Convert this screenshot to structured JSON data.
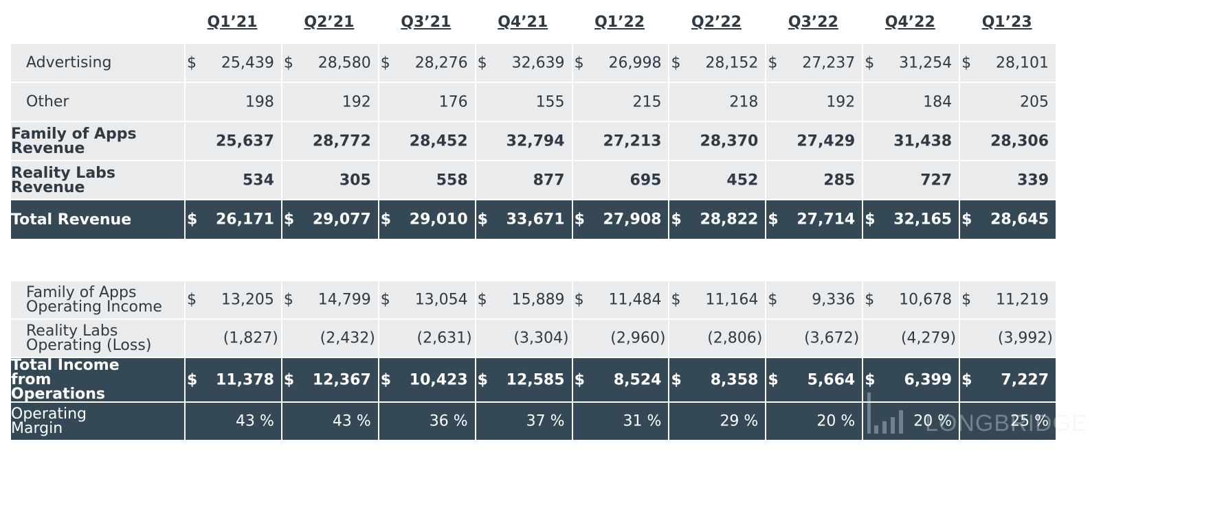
{
  "quarters": [
    "Q1’21",
    "Q2’21",
    "Q3’21",
    "Q4’21",
    "Q1’22",
    "Q2’22",
    "Q3’22",
    "Q4’22",
    "Q1’23"
  ],
  "revenue_rows": [
    {
      "label": "Advertising",
      "bold": false,
      "indent": true,
      "style": "light",
      "dollar": true,
      "values": [
        "25,439",
        "28,580",
        "28,276",
        "32,639",
        "26,998",
        "28,152",
        "27,237",
        "31,254",
        "28,101"
      ]
    },
    {
      "label": "Other",
      "bold": false,
      "indent": true,
      "style": "light",
      "dollar": false,
      "values": [
        "198",
        "192",
        "176",
        "155",
        "215",
        "218",
        "192",
        "184",
        "205"
      ]
    },
    {
      "label": "Family of Apps Revenue",
      "bold": true,
      "indent": false,
      "style": "light",
      "dollar": false,
      "values": [
        "25,637",
        "28,772",
        "28,452",
        "32,794",
        "27,213",
        "28,370",
        "27,429",
        "31,438",
        "28,306"
      ]
    },
    {
      "label": "Reality Labs Revenue",
      "bold": true,
      "indent": false,
      "style": "light",
      "dollar": false,
      "values": [
        "534",
        "305",
        "558",
        "877",
        "695",
        "452",
        "285",
        "727",
        "339"
      ]
    },
    {
      "label": "Total Revenue",
      "bold": true,
      "indent": false,
      "style": "dark",
      "dollar": true,
      "values": [
        "26,171",
        "29,077",
        "29,010",
        "33,671",
        "27,908",
        "28,822",
        "27,714",
        "32,165",
        "28,645"
      ]
    }
  ],
  "income_rows": [
    {
      "label": "Family of Apps Operating Income",
      "bold": false,
      "indent": true,
      "style": "light",
      "dollar": true,
      "values": [
        "13,205",
        "14,799",
        "13,054",
        "15,889",
        "11,484",
        "11,164",
        "9,336",
        "10,678",
        "11,219"
      ]
    },
    {
      "label": "Reality Labs Operating (Loss)",
      "bold": false,
      "indent": true,
      "style": "light",
      "dollar": false,
      "values": [
        "(1,827)",
        "(2,432)",
        "(2,631)",
        "(3,304)",
        "(2,960)",
        "(2,806)",
        "(3,672)",
        "(4,279)",
        "(3,992)"
      ]
    },
    {
      "label": "Total Income from Operations",
      "bold": true,
      "indent": false,
      "style": "dark",
      "dollar": true,
      "values": [
        "11,378",
        "12,367",
        "10,423",
        "12,585",
        "8,524",
        "8,358",
        "5,664",
        "6,399",
        "7,227"
      ]
    },
    {
      "label": "Operating Margin",
      "bold": false,
      "indent": false,
      "style": "dark",
      "dollar": false,
      "values": [
        "43 %",
        "43 %",
        "36 %",
        "37 %",
        "31 %",
        "29 %",
        "20 %",
        "20 %",
        "25 %"
      ]
    }
  ],
  "currency_symbol": "$",
  "watermark": "LONGBRIDGE",
  "colors": {
    "dark_row": "#344955",
    "light_row": "#e9ebed",
    "text": "#2e3a44"
  }
}
